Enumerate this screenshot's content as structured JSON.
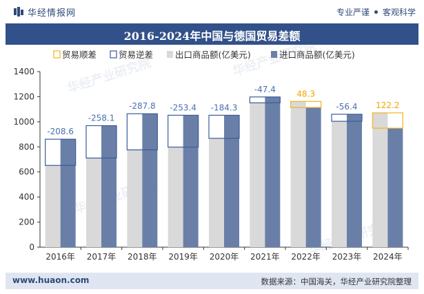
{
  "header": {
    "brand": "华经情报网",
    "slogan_left": "专业严谨",
    "slogan_right": "客观科学"
  },
  "footer": {
    "website": "www.huaon.com",
    "source": "数据来源：中国海关，华经产业研究院整理"
  },
  "watermark": "华经产业研究院",
  "colors": {
    "surplus": "#f3b21d",
    "deficit": "#3a5b9a",
    "export": "#d9d9d9",
    "import": "#6a7fa8",
    "label_deficit": "#4a6fb0",
    "label_surplus": "#f0a500"
  },
  "chart_data": {
    "type": "bar",
    "title": "2016-2024年中国与德国贸易差额",
    "categories": [
      "2016年",
      "2017年",
      "2018年",
      "2019年",
      "2020年",
      "2021年",
      "2022年",
      "2023年",
      "2024年"
    ],
    "series": [
      {
        "name": "出口商品额(亿美元)",
        "values": [
          652,
          711,
          776,
          798,
          868,
          1151,
          1162,
          1004,
          1071
        ]
      },
      {
        "name": "进口商品额(亿美元)",
        "values": [
          861,
          969,
          1064,
          1052,
          1052,
          1198,
          1114,
          1060,
          949
        ]
      }
    ],
    "balance": {
      "values": [
        -208.6,
        -258.1,
        -287.8,
        -253.4,
        -184.3,
        -47.4,
        48.3,
        -56.4,
        122.2
      ],
      "labels": [
        "-208.6",
        "-258.1",
        "-287.8",
        "-253.4",
        "-184.3",
        "-47.4",
        "48.3",
        "-56.4",
        "122.2"
      ]
    },
    "legend": [
      "贸易顺差",
      "贸易逆差",
      "出口商品额(亿美元)",
      "进口商品额(亿美元)"
    ],
    "legend_position": "top",
    "ylim": [
      0,
      1400
    ],
    "yticks": [
      "0",
      "200",
      "400",
      "600",
      "800",
      "1000",
      "1200",
      "1400"
    ],
    "xlabel": "",
    "ylabel": "",
    "grid": false
  }
}
